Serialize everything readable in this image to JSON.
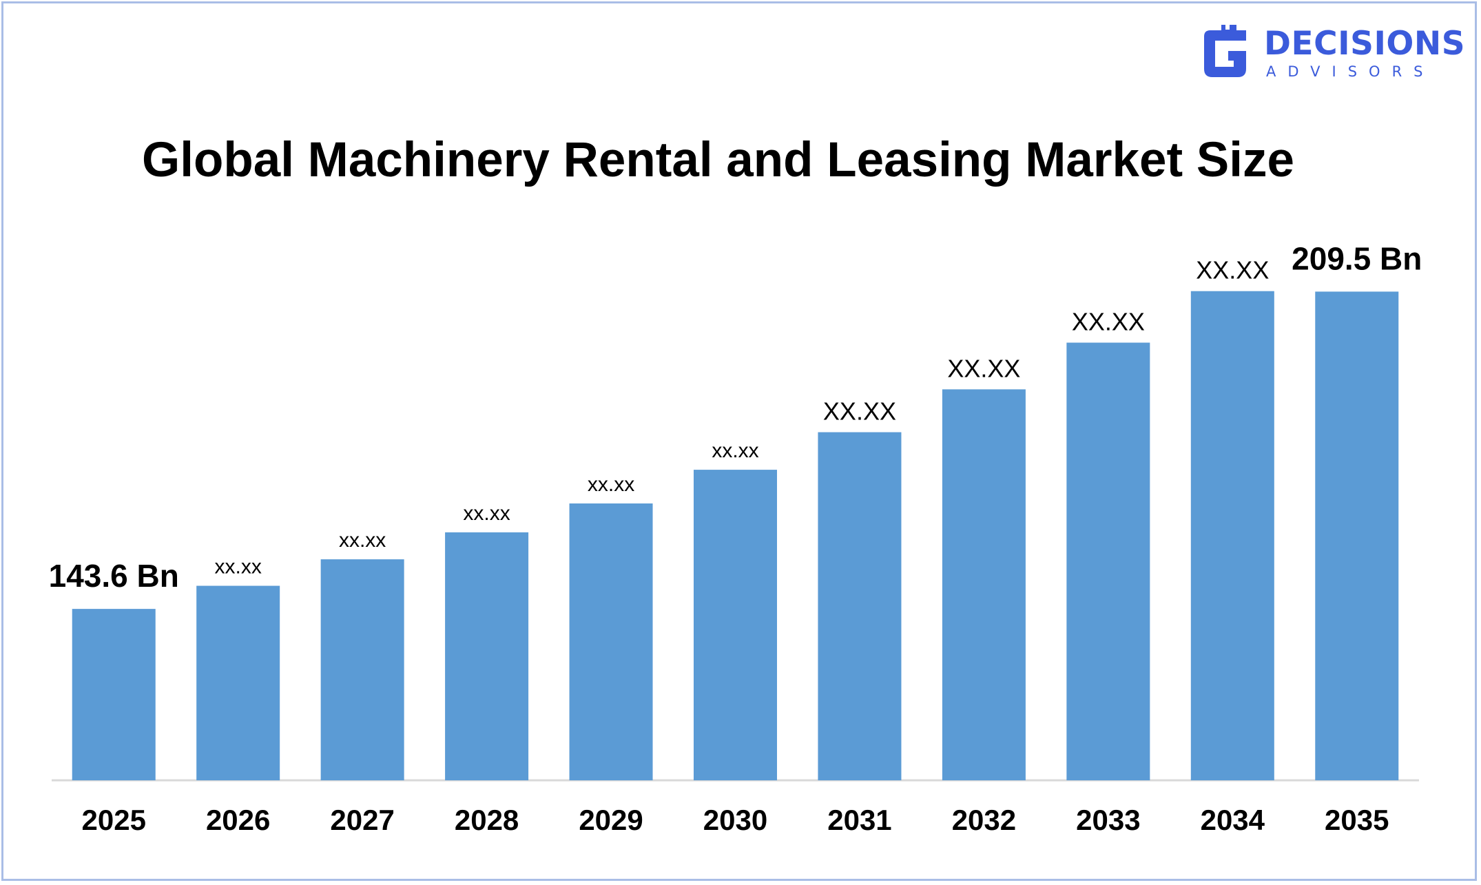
{
  "brand": {
    "name": "DECISIONS",
    "tagline": "ADVISORS",
    "color": "#3b5bdb"
  },
  "chart_data": {
    "type": "bar",
    "title": "Global Machinery Rental and Leasing Market Size",
    "xlabel": "",
    "ylabel": "",
    "categories": [
      "2025",
      "2026",
      "2027",
      "2028",
      "2029",
      "2030",
      "2031",
      "2032",
      "2033",
      "2034",
      "2035"
    ],
    "values": [
      143.6,
      148.4,
      153.9,
      159.5,
      165.5,
      172.5,
      180.3,
      189.2,
      198.9,
      209.6,
      209.5
    ],
    "data_labels": [
      "143.6 Bn",
      "xx.xx",
      "xx.xx",
      "xx.xx",
      "xx.xx",
      "xx.xx",
      "XX.XX",
      "XX.XX",
      "XX.XX",
      "XX.XX",
      "209.5 Bn"
    ],
    "ylim": [
      108,
      220
    ],
    "grid": false,
    "legend": "none",
    "bar_color": "#5b9bd5",
    "axis_color": "#d9d9d9"
  }
}
